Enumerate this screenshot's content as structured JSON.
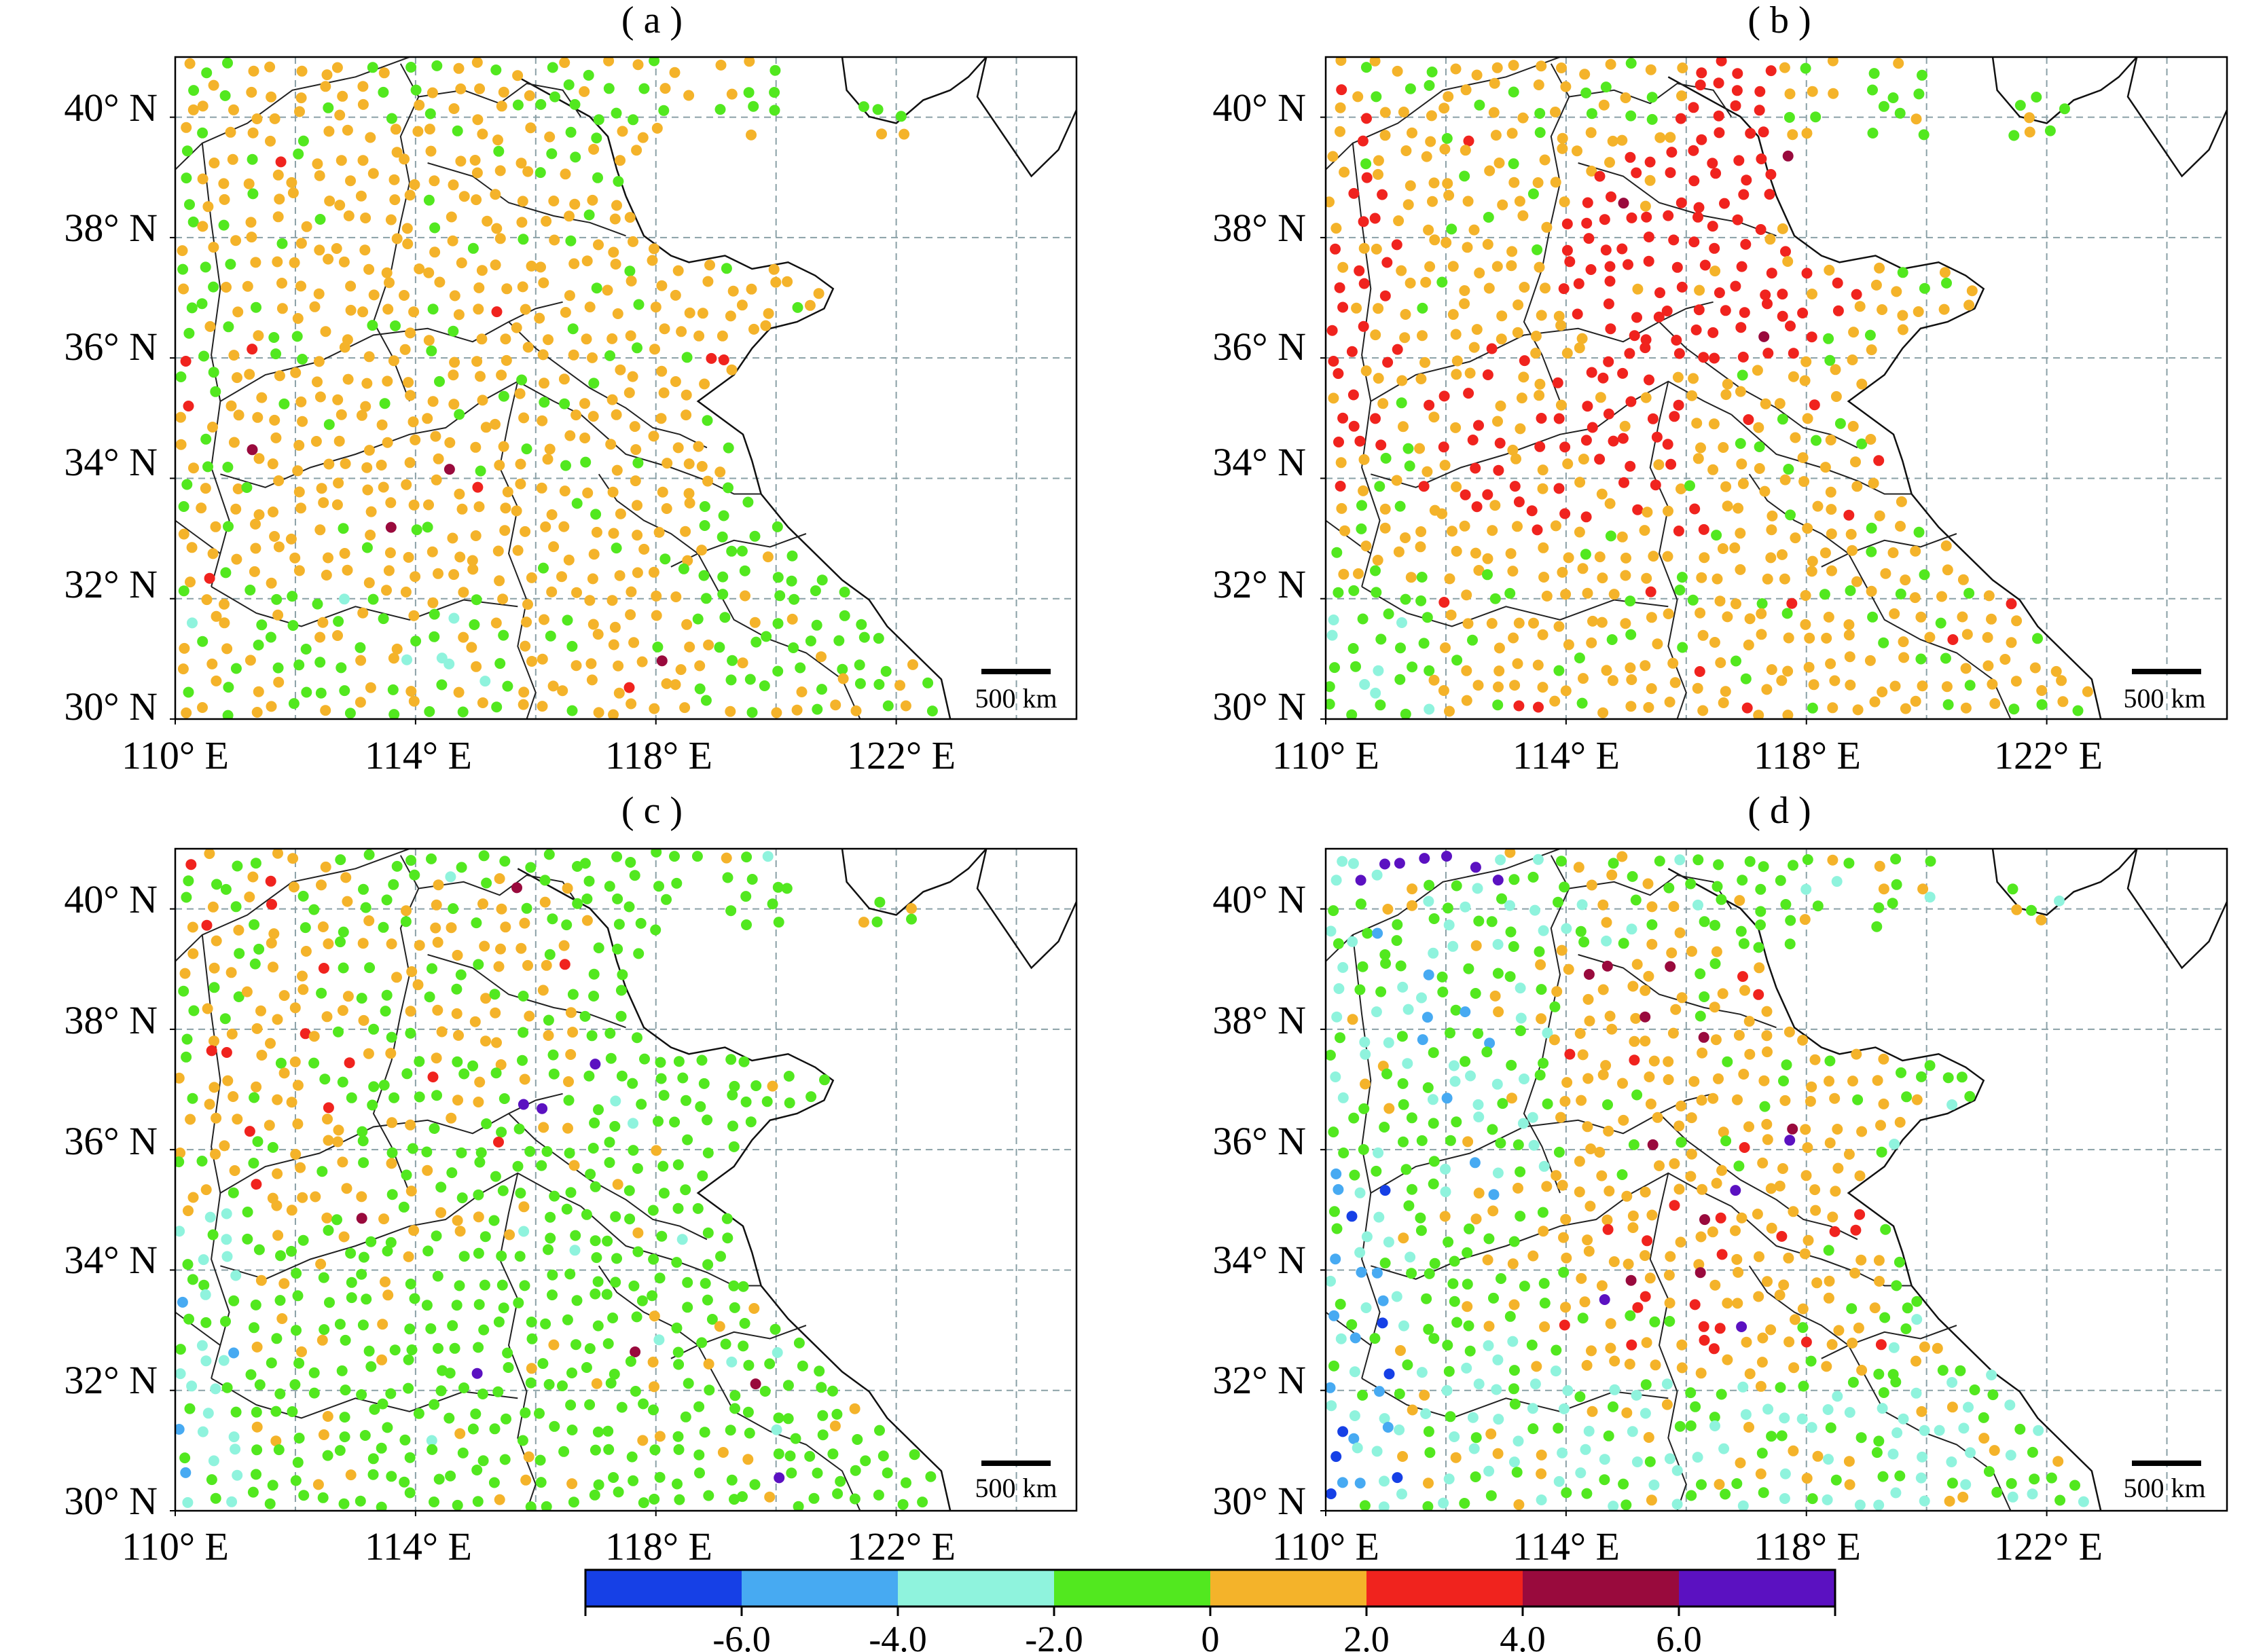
{
  "figure": {
    "panels": [
      {
        "id": "a",
        "label": "( a )"
      },
      {
        "id": "b",
        "label": "( b )"
      },
      {
        "id": "c",
        "label": "( c )"
      },
      {
        "id": "d",
        "label": "( d )"
      }
    ],
    "lat_ticks": [
      "30° N",
      "32° N",
      "34° N",
      "36° N",
      "38° N",
      "40° N"
    ],
    "lon_ticks": [
      "110° E",
      "114° E",
      "118° E",
      "122° E"
    ],
    "scale_bar_label": "500 km",
    "map_extent": {
      "lon": [
        110,
        125
      ],
      "lat": [
        30,
        41
      ]
    },
    "gridlines": true
  },
  "legend": {
    "bins": [
      {
        "range": [
          -8,
          -6
        ],
        "color": "#1640e6"
      },
      {
        "range": [
          -6,
          -4
        ],
        "color": "#47aaf2"
      },
      {
        "range": [
          -4,
          -2
        ],
        "color": "#8ff3dd"
      },
      {
        "range": [
          -2,
          0
        ],
        "color": "#52e81f"
      },
      {
        "range": [
          0,
          2
        ],
        "color": "#f4b32a"
      },
      {
        "range": [
          2,
          4
        ],
        "color": "#f0231e"
      },
      {
        "range": [
          4,
          6
        ],
        "color": "#990a3d"
      },
      {
        "range": [
          6,
          8
        ],
        "color": "#5b11c1"
      }
    ],
    "tick_labels": [
      "-6.0",
      "-4.0",
      "-2.0",
      "0",
      "2.0",
      "4.0",
      "6.0"
    ]
  }
}
